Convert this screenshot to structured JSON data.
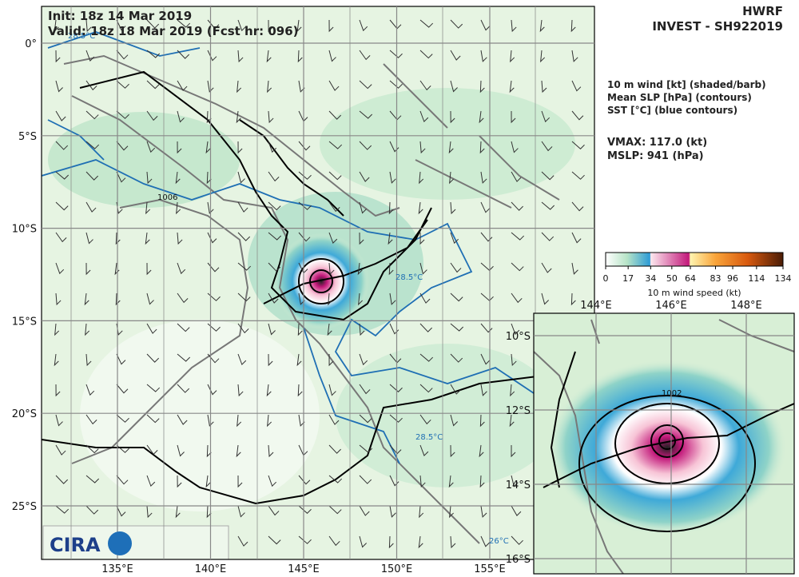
{
  "header": {
    "init": "Init:   18z 14 Mar 2019",
    "valid": "Valid: 18z 18 Mar 2019 (Fcst hr: 096)",
    "model": "HWRF",
    "storm": "INVEST - SH922019"
  },
  "legend": {
    "lines": [
      "10 m wind [kt] (shaded/barb)",
      "Mean SLP [hPa] (contours)",
      "SST [°C] (blue contours)"
    ],
    "vmax": "VMAX: 117.0 (kt)",
    "mslp": "MSLP:  941 (hPa)"
  },
  "colorbar": {
    "ticks": [
      0,
      17,
      34,
      50,
      64,
      83,
      96,
      114,
      134
    ],
    "label": "10 m wind speed (kt)"
  },
  "map": {
    "lat_labels": [
      "0°",
      "5°S",
      "10°S",
      "15°S",
      "20°S",
      "25°S"
    ],
    "lon_labels": [
      "135°E",
      "140°E",
      "145°E",
      "150°E",
      "155°E"
    ],
    "contour_labels": {
      "sst": "28.5°C",
      "sst_low": "26°C",
      "slp": "1006"
    },
    "logo": "CIRA"
  },
  "inset": {
    "lon_labels": [
      "144°E",
      "146°E",
      "148°E"
    ],
    "lat_labels": [
      "10°S",
      "12°S",
      "14°S",
      "16°S"
    ],
    "slp_label": "1002"
  }
}
